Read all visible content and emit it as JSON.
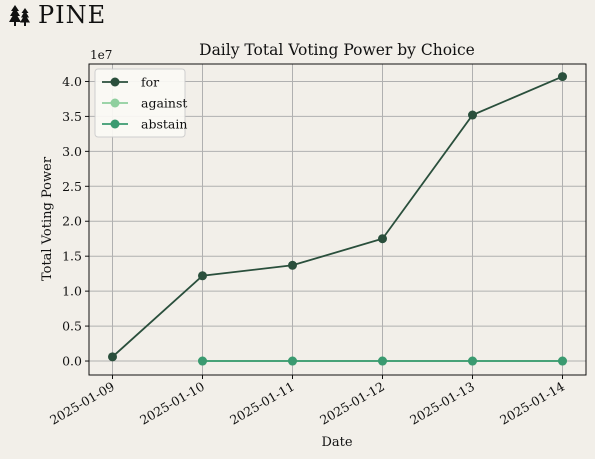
{
  "brand": {
    "name": "PINE",
    "icon": "pine-trees-icon"
  },
  "chart_data": {
    "type": "line",
    "title": "Daily Total Voting Power by Choice",
    "xlabel": "Date",
    "ylabel": "Total Voting Power",
    "y_multiplier_label": "1e7",
    "categories": [
      "2025-01-09",
      "2025-01-10",
      "2025-01-11",
      "2025-01-12",
      "2025-01-13",
      "2025-01-14"
    ],
    "y_ticks": [
      "0.0",
      "0.5",
      "1.0",
      "1.5",
      "2.0",
      "2.5",
      "3.0",
      "3.5",
      "4.0"
    ],
    "ylim": [
      -0.2,
      4.25
    ],
    "grid": true,
    "legend_position": "top-left",
    "series": [
      {
        "name": "for",
        "color": "#2a4f3c",
        "values": [
          0.06,
          1.22,
          1.37,
          1.75,
          3.52,
          4.07
        ]
      },
      {
        "name": "against",
        "color": "#8fcf9e",
        "values": [
          null,
          0.0,
          0.0,
          0.0,
          0.0,
          0.0
        ]
      },
      {
        "name": "abstain",
        "color": "#3a9a70",
        "values": [
          null,
          0.0,
          0.0,
          0.0,
          0.0,
          0.0
        ]
      }
    ]
  }
}
